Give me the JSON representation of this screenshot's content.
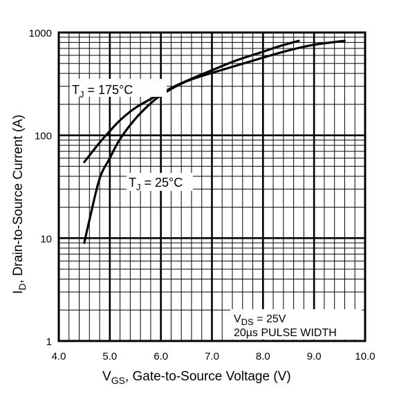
{
  "chart_data": {
    "type": "line",
    "x_scale": "linear",
    "y_scale": "log",
    "xlim": [
      4.0,
      10.0
    ],
    "ylim": [
      1,
      1000
    ],
    "x_ticks": [
      4.0,
      5.0,
      6.0,
      7.0,
      8.0,
      9.0,
      10.0
    ],
    "x_tick_labels": [
      "4.0",
      "5.0",
      "6.0",
      "7.0",
      "8.0",
      "9.0",
      "10.0"
    ],
    "y_ticks": [
      1,
      10,
      100,
      1000
    ],
    "y_tick_labels": [
      "1",
      "10",
      "100",
      "1000"
    ],
    "grid": true,
    "xlabel": {
      "symbol": "V",
      "sub": "GS",
      "text": ", Gate-to-Source Voltage (V)"
    },
    "ylabel": {
      "symbol": "I",
      "sub": "D",
      "text": ",  Drain-to-Source Current (A)"
    },
    "series": [
      {
        "label_symbol": "T",
        "label_sub": "J",
        "label_text": " = 175°C",
        "x": [
          4.5,
          4.8,
          5.0,
          5.2,
          5.5,
          6.0,
          6.3,
          6.6,
          7.0,
          7.5,
          8.0,
          8.3,
          8.7
        ],
        "y": [
          55,
          85,
          110,
          140,
          185,
          255,
          305,
          355,
          430,
          540,
          650,
          730,
          830
        ]
      },
      {
        "label_symbol": "T",
        "label_sub": "J",
        "label_text": " = 25°C",
        "x": [
          4.5,
          4.6,
          4.8,
          5.0,
          5.2,
          5.5,
          5.8,
          6.0,
          6.3,
          6.6,
          7.0,
          7.5,
          8.0,
          8.5,
          9.0,
          9.6
        ],
        "y": [
          9,
          15,
          38,
          60,
          92,
          145,
          205,
          245,
          300,
          350,
          405,
          480,
          570,
          670,
          760,
          830
        ]
      }
    ],
    "annotation": {
      "line1_symbol": "V",
      "line1_sub": "DS",
      "line1_text": " = 25V",
      "line2": "20µs PULSE WIDTH"
    }
  }
}
